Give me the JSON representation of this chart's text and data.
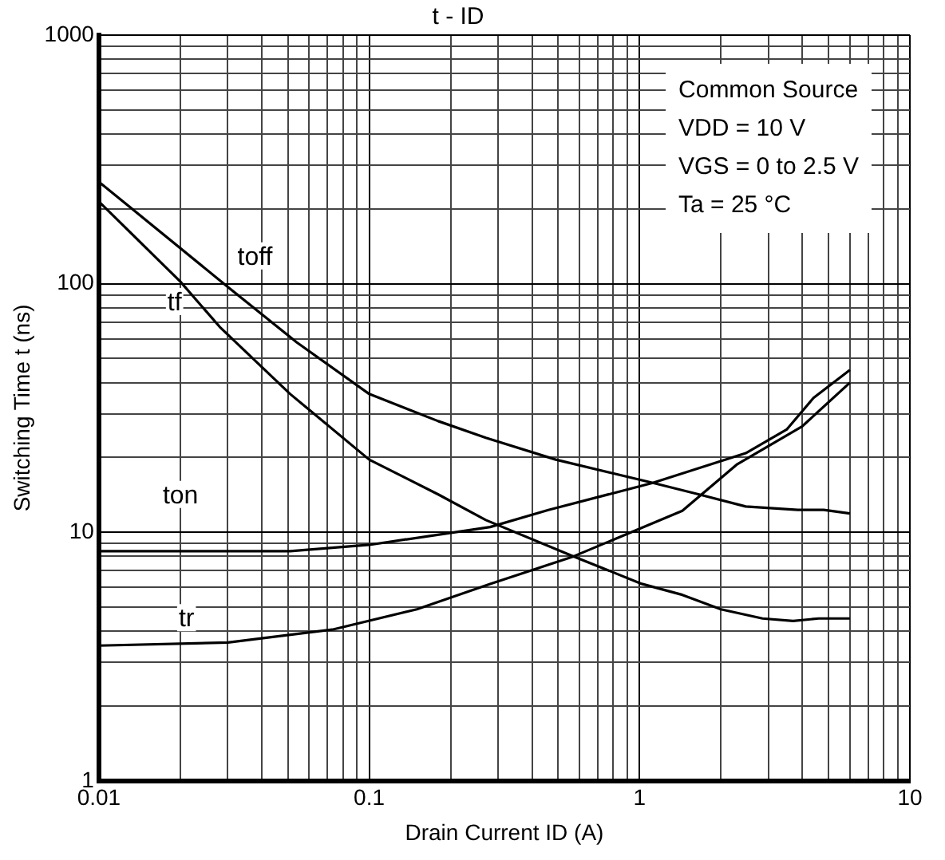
{
  "chart_data": {
    "type": "line",
    "title": "t - ID",
    "xlabel": "Drain Current ID (A)",
    "ylabel": "Switching Time t (ns)",
    "log": "xy",
    "grid": true,
    "legend": false,
    "marker": "none",
    "line_style": "solid",
    "xlim": [
      0.01,
      10
    ],
    "ylim": [
      1,
      1000
    ],
    "xticks": [
      0.01,
      {
        "value": 0.02,
        "label": null
      },
      {
        "value": 0.03,
        "label": null
      },
      {
        "value": 0.04,
        "label": null
      },
      {
        "value": 0.05,
        "label": null
      },
      {
        "value": 0.06,
        "label": null
      },
      {
        "value": 0.07,
        "label": null
      },
      {
        "value": 0.08,
        "label": null
      },
      {
        "value": 0.09,
        "label": null
      },
      0.1,
      {
        "value": 0.2,
        "label": null
      },
      {
        "value": 0.3,
        "label": null
      },
      {
        "value": 0.4,
        "label": null
      },
      {
        "value": 0.5,
        "label": null
      },
      {
        "value": 0.6,
        "label": null
      },
      {
        "value": 0.7,
        "label": null
      },
      {
        "value": 0.8,
        "label": null
      },
      {
        "value": 0.9,
        "label": null
      },
      1,
      {
        "value": 2,
        "label": null
      },
      {
        "value": 3,
        "label": null
      },
      {
        "value": 4,
        "label": null
      },
      {
        "value": 5,
        "label": null
      },
      {
        "value": 6,
        "label": null
      },
      {
        "value": 7,
        "label": null
      },
      {
        "value": 8,
        "label": null
      },
      {
        "value": 9,
        "label": null
      },
      10
    ],
    "yticks": [
      1,
      {
        "value": 2,
        "label": null
      },
      {
        "value": 3,
        "label": null
      },
      {
        "value": 4,
        "label": null
      },
      {
        "value": 5,
        "label": null
      },
      {
        "value": 6,
        "label": null
      },
      {
        "value": 7,
        "label": null
      },
      {
        "value": 8,
        "label": null
      },
      {
        "value": 9,
        "label": null
      },
      10,
      {
        "value": 20,
        "label": null
      },
      {
        "value": 30,
        "label": null
      },
      {
        "value": 40,
        "label": null
      },
      {
        "value": 50,
        "label": null
      },
      {
        "value": 60,
        "label": null
      },
      {
        "value": 70,
        "label": null
      },
      {
        "value": 80,
        "label": null
      },
      {
        "value": 90,
        "label": null
      },
      100,
      {
        "value": 200,
        "label": null
      },
      {
        "value": 300,
        "label": null
      },
      {
        "value": 400,
        "label": null
      },
      {
        "value": 500,
        "label": null
      },
      {
        "value": 600,
        "label": null
      },
      {
        "value": 700,
        "label": null
      },
      {
        "value": 800,
        "label": null
      },
      {
        "value": 900,
        "label": null
      },
      1000
    ],
    "annotations": [
      "Common Source",
      "VDD = 10 V",
      "VGS = 0 to 2.5 V",
      "Ta = 25 °C"
    ],
    "series": [
      {
        "name": "toff",
        "color": "#000000",
        "x": [
          0.01,
          0.03,
          0.054,
          0.1,
          0.18,
          0.27,
          0.49,
          1.12,
          1.66,
          2.47,
          3.85,
          4.8,
          6.0
        ],
        "values": [
          257,
          97,
          58,
          36,
          28,
          24,
          19.6,
          15.8,
          14.2,
          12.7,
          12.3,
          12.3,
          11.9
        ]
      },
      {
        "name": "tf",
        "color": "#000000",
        "x": [
          0.01,
          0.02,
          0.028,
          0.051,
          0.1,
          0.18,
          0.27,
          0.57,
          1.02,
          1.44,
          2.0,
          2.85,
          3.7,
          4.6,
          6.0
        ],
        "values": [
          214,
          102,
          67,
          36,
          19.6,
          14.2,
          11.2,
          8.0,
          6.2,
          5.6,
          4.9,
          4.5,
          4.4,
          4.5,
          4.5
        ]
      },
      {
        "name": "ton",
        "color": "#000000",
        "x": [
          0.01,
          0.051,
          0.1,
          0.28,
          0.46,
          1.12,
          2.47,
          3.5,
          4.4,
          6.0
        ],
        "values": [
          8.4,
          8.4,
          8.9,
          10.5,
          12.3,
          15.8,
          20.8,
          25.9,
          34.7,
          45
        ]
      },
      {
        "name": "tr",
        "color": "#000000",
        "x": [
          0.01,
          0.03,
          0.073,
          0.15,
          0.28,
          0.57,
          1.44,
          2.3,
          4.0,
          6.0
        ],
        "values": [
          3.5,
          3.6,
          4.06,
          4.9,
          6.2,
          8.0,
          12.2,
          18.8,
          26.7,
          40
        ]
      }
    ]
  }
}
